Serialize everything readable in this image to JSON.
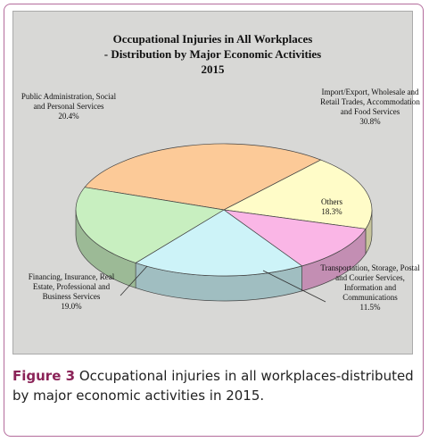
{
  "chart_data": {
    "type": "pie",
    "title": [
      "Occupational Injuries in All Workplaces",
      "- Distribution by Major Economic Activities",
      "2015"
    ],
    "categories": [
      "Import/Export, Wholesale and Retail Trades, Accommodation and Food Services",
      "Others",
      "Transportation, Storage, Postal and Courier Services, Information and Communications",
      "Financing, Insurance, Real Estate, Professional and Business Services",
      "Public Administration, Social and Personal Services"
    ],
    "values": [
      30.8,
      18.3,
      11.5,
      19.0,
      20.4
    ],
    "value_labels": [
      "30.8%",
      "18.3%",
      "11.5%",
      "19.0%",
      "20.4%"
    ],
    "colors": [
      "#fcca98",
      "#fffcc8",
      "#fab6e6",
      "#cdf3f8",
      "#c8efc0"
    ]
  },
  "caption": {
    "label": "Figure 3",
    "text": "Occupational injuries in all workplaces-distributed by major economic activities in 2015."
  }
}
